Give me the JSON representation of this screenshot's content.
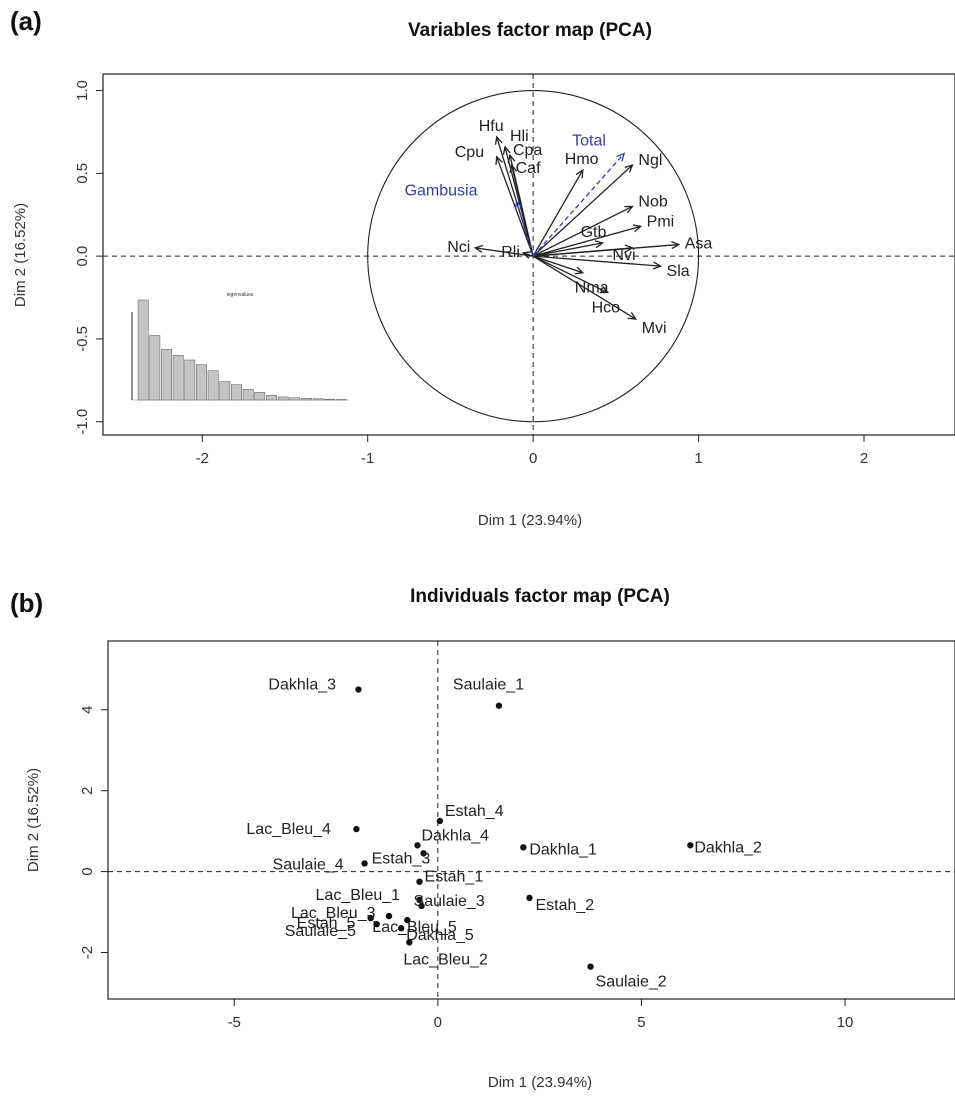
{
  "chart_data": [
    {
      "panel_label": "(a)",
      "type": "vector",
      "title": "Variables factor map (PCA)",
      "xlabel": "Dim 1 (23.94%)",
      "ylabel": "Dim 2 (16.52%)",
      "xlim": [
        -2.6,
        2.55
      ],
      "ylim": [
        -1.08,
        1.1
      ],
      "xticks": [
        -2,
        -1,
        0,
        1,
        2
      ],
      "yticks": [
        1.0,
        0.5,
        0.0,
        -0.5,
        -1.0
      ],
      "xtick_labels": [
        "-2",
        "-1",
        "0",
        "1",
        "2"
      ],
      "ytick_labels": [
        "1.0",
        "0.5",
        "0.0",
        "-0.5",
        "-1.0"
      ],
      "circle_radius": 1,
      "active_color": "#222222",
      "supplementary_color": "#3a3aaa",
      "vectors": [
        {
          "label": "Hfu",
          "x": -0.22,
          "y": 0.72
        },
        {
          "label": "Hli",
          "x": -0.17,
          "y": 0.66
        },
        {
          "label": "Cpa",
          "x": -0.14,
          "y": 0.61
        },
        {
          "label": "Caf",
          "x": -0.13,
          "y": 0.55
        },
        {
          "label": "Cpu",
          "x": -0.22,
          "y": 0.6
        },
        {
          "label": "Nci",
          "x": -0.35,
          "y": 0.05
        },
        {
          "label": "Rli",
          "x": -0.06,
          "y": 0.02
        },
        {
          "label": "Hmo",
          "x": 0.3,
          "y": 0.52
        },
        {
          "label": "Ngl",
          "x": 0.6,
          "y": 0.55
        },
        {
          "label": "Nob",
          "x": 0.6,
          "y": 0.3
        },
        {
          "label": "Pmi",
          "x": 0.65,
          "y": 0.18
        },
        {
          "label": "Gtb",
          "x": 0.42,
          "y": 0.08
        },
        {
          "label": "Nvi",
          "x": 0.6,
          "y": 0.05
        },
        {
          "label": "Asa",
          "x": 0.88,
          "y": 0.07
        },
        {
          "label": "Sla",
          "x": 0.77,
          "y": -0.06
        },
        {
          "label": "Nma",
          "x": 0.3,
          "y": -0.1
        },
        {
          "label": "Hco",
          "x": 0.45,
          "y": -0.22
        },
        {
          "label": "Mvi",
          "x": 0.62,
          "y": -0.38
        }
      ],
      "supplementary": [
        {
          "label": "Total",
          "x": 0.55,
          "y": 0.62
        },
        {
          "label": "Gambusia",
          "x": -0.1,
          "y": 0.33
        }
      ],
      "inset_scree": {
        "title": "eigenvalues",
        "values": [
          6.5,
          4.2,
          3.3,
          2.9,
          2.6,
          2.3,
          1.9,
          1.2,
          1.0,
          0.7,
          0.5,
          0.3,
          0.2,
          0.15,
          0.1,
          0.08,
          0.05,
          0.03
        ]
      }
    },
    {
      "panel_label": "(b)",
      "type": "scatter",
      "title": "Individuals factor map (PCA)",
      "xlabel": "Dim 1 (23.94%)",
      "ylabel": "Dim 2 (16.52%)",
      "xlim": [
        -8.1,
        12.7
      ],
      "ylim": [
        -3.15,
        5.7
      ],
      "xticks": [
        -5,
        0,
        5,
        10
      ],
      "yticks": [
        4,
        2,
        0,
        -2
      ],
      "xtick_labels": [
        "-5",
        "0",
        "5",
        "10"
      ],
      "ytick_labels": [
        "4",
        "2",
        "0",
        "-2"
      ],
      "points": [
        {
          "label": "Dakhla_3",
          "x": -1.95,
          "y": 4.5
        },
        {
          "label": "Saulaie_1",
          "x": 1.5,
          "y": 4.1
        },
        {
          "label": "Estah_4",
          "x": 0.05,
          "y": 1.25
        },
        {
          "label": "Lac_Bleu_4",
          "x": -2.0,
          "y": 1.05
        },
        {
          "label": "Dakhla_4",
          "x": -0.5,
          "y": 0.65
        },
        {
          "label": "Dakhla_1",
          "x": 2.1,
          "y": 0.6
        },
        {
          "label": "Dakhla_2",
          "x": 6.2,
          "y": 0.65
        },
        {
          "label": "Saulaie_4",
          "x": -1.8,
          "y": 0.2
        },
        {
          "label": "Estah_3",
          "x": -0.35,
          "y": 0.45
        },
        {
          "label": "Estah_1",
          "x": -0.45,
          "y": -0.25
        },
        {
          "label": "Lac_Bleu_1",
          "x": -0.45,
          "y": -0.7
        },
        {
          "label": "Estah_2",
          "x": 2.25,
          "y": -0.65
        },
        {
          "label": "Lac_Bleu_3",
          "x": -1.2,
          "y": -1.1
        },
        {
          "label": "Saulaie_3",
          "x": -0.4,
          "y": -0.85
        },
        {
          "label": "Estah_5",
          "x": -1.65,
          "y": -1.15
        },
        {
          "label": "Lac_Bleu_5",
          "x": -0.75,
          "y": -1.2
        },
        {
          "label": "Dakhla_5",
          "x": -0.9,
          "y": -1.4
        },
        {
          "label": "Saulaie_5",
          "x": -1.5,
          "y": -1.3
        },
        {
          "label": "Lac_Bleu_2",
          "x": -0.7,
          "y": -1.75
        },
        {
          "label": "Saulaie_2",
          "x": 3.75,
          "y": -2.35
        }
      ]
    }
  ]
}
